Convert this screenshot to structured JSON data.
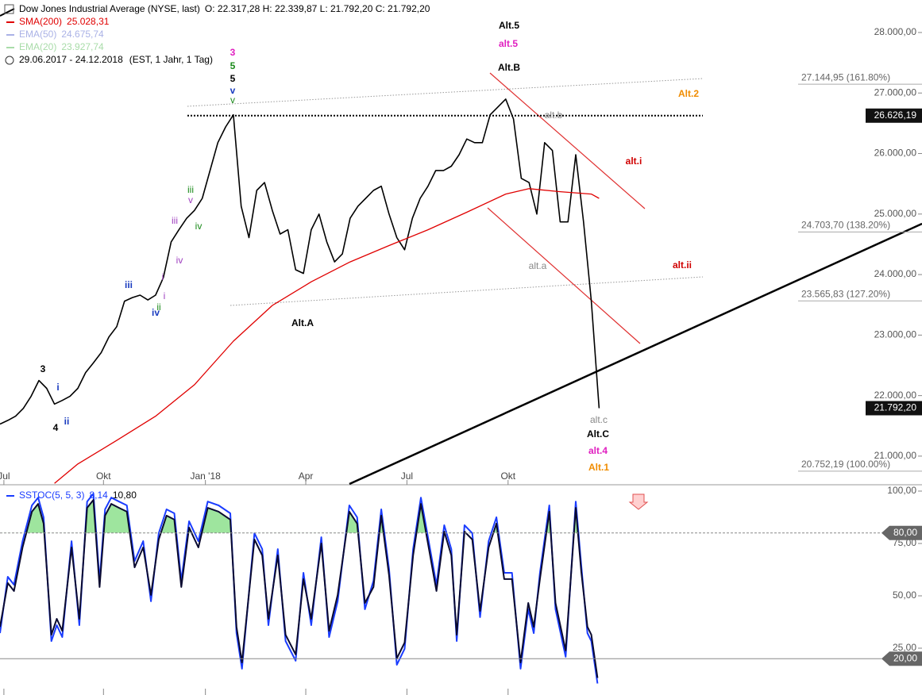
{
  "chart_data": [
    {
      "type": "line",
      "title": "Dow Jones Industrial Average (NYSE, last)",
      "ohlc": "O: 22.317,28  H: 22.339,87  L: 21.792,20  C: 21.792,20",
      "period": "29.06.2017 - 24.12.2018",
      "period_note": "(EST, 1 Jahr, 1 Tag)",
      "xlim": [
        0,
        118.5
      ],
      "ylim": [
        20540,
        28537
      ],
      "xticks": [
        {
          "value": 0.5,
          "label": "Jul"
        },
        {
          "value": 13.3,
          "label": "Okt"
        },
        {
          "value": 26.4,
          "label": "Jan '18"
        },
        {
          "value": 39.3,
          "label": "Apr"
        },
        {
          "value": 52.3,
          "label": "Jul"
        },
        {
          "value": 65.3,
          "label": "Okt"
        }
      ],
      "yticks": [
        {
          "value": 21000,
          "label": "21.000,00"
        },
        {
          "value": 22000,
          "label": "22.000,00"
        },
        {
          "value": 23000,
          "label": "23.000,00"
        },
        {
          "value": 24000,
          "label": "24.000,00"
        },
        {
          "value": 25000,
          "label": "25.000,00"
        },
        {
          "value": 26000,
          "label": "26.000,00"
        },
        {
          "value": 27000,
          "label": "27.000,00"
        },
        {
          "value": 28000,
          "label": "28.000,00"
        }
      ],
      "x": [
        0,
        1,
        2,
        3,
        4,
        5,
        6,
        7,
        8,
        9,
        10,
        11,
        12,
        13,
        14,
        15,
        16,
        17,
        18,
        19,
        20,
        21,
        22,
        23,
        24,
        25,
        26,
        27,
        28,
        29,
        30,
        31,
        32,
        33,
        34,
        35,
        36,
        37,
        38,
        39,
        40,
        41,
        42,
        43,
        44,
        45,
        46,
        47,
        48,
        49,
        50,
        51,
        52,
        53,
        54,
        55,
        56,
        57,
        58,
        59,
        60,
        61,
        62,
        63,
        64,
        65,
        66,
        67,
        68,
        69,
        70,
        71,
        72,
        73,
        74,
        75,
        76,
        77
      ],
      "series": [
        {
          "name": "Dow Jones Industrial Average",
          "color": "#000000",
          "values": [
            21530,
            21590,
            21660,
            21790,
            21990,
            22250,
            22120,
            21860,
            21920,
            21990,
            22120,
            22380,
            22540,
            22710,
            22970,
            23140,
            23560,
            23620,
            23660,
            23580,
            23660,
            23950,
            24540,
            24740,
            24930,
            25060,
            25260,
            25720,
            26180,
            26440,
            26640,
            25130,
            24610,
            25390,
            25520,
            25060,
            24670,
            24740,
            24080,
            24020,
            24740,
            25000,
            24540,
            24210,
            24340,
            24930,
            25130,
            25260,
            25390,
            25460,
            25000,
            24610,
            24410,
            24930,
            25260,
            25460,
            25720,
            25720,
            25790,
            25980,
            26240,
            26180,
            26180,
            26640,
            26770,
            26900,
            26570,
            25590,
            25520,
            25000,
            26180,
            26050,
            24870,
            24870,
            25980,
            24870,
            23560,
            21792.2
          ]
        },
        {
          "name": "SMA(200)",
          "legend_value": "25.028,31",
          "color": "#e00000",
          "x": [
            7,
            10,
            15,
            20,
            25,
            30,
            35,
            40,
            45,
            50,
            55,
            60,
            65,
            68,
            72,
            76,
            77
          ],
          "values": [
            20550,
            20870,
            21260,
            21660,
            22180,
            22900,
            23490,
            23880,
            24210,
            24480,
            24740,
            25030,
            25330,
            25420,
            25370,
            25330,
            25260
          ]
        }
      ],
      "legend_extra": [
        {
          "name": "EMA(50)",
          "value": "24.675,74",
          "color": "#aab2e6"
        },
        {
          "name": "EMA(20)",
          "value": "23.927,74",
          "color": "#a9dca9"
        }
      ],
      "price_markers": [
        {
          "value": 26626.19,
          "label": "26.626,19"
        },
        {
          "value": 21792.2,
          "label": "21.792,20"
        }
      ],
      "fib_levels": [
        {
          "value": 27144.95,
          "label": "27.144,95 (161.80%)"
        },
        {
          "value": 24703.7,
          "label": "24.703,70 (138.20%)"
        },
        {
          "value": 23565.83,
          "label": "23.565,83 (127.20%)"
        },
        {
          "value": 20752.19,
          "label": "20.752,19 (100.00%)"
        }
      ],
      "annotations": [
        {
          "text": "Alt.5",
          "color": "#000000"
        },
        {
          "text": "alt.5",
          "color": "#e020c0"
        },
        {
          "text": "Alt.B",
          "color": "#000000"
        },
        {
          "text": "Alt.2",
          "color": "#f08c00"
        },
        {
          "text": "alt.b",
          "color": "#888888"
        },
        {
          "text": "alt.i",
          "color": "#d00000"
        },
        {
          "text": "alt.ii",
          "color": "#d00000"
        },
        {
          "text": "alt.a",
          "color": "#888888"
        },
        {
          "text": "Alt.A",
          "color": "#000000"
        },
        {
          "text": "alt.c",
          "color": "#888888"
        },
        {
          "text": "Alt.C",
          "color": "#000000"
        },
        {
          "text": "alt.4",
          "color": "#e020c0"
        },
        {
          "text": "Alt.1",
          "color": "#f08c00"
        },
        {
          "text": "3",
          "color": "#e020c0"
        },
        {
          "text": "5",
          "color": "#1a8a1a"
        },
        {
          "text": "5",
          "color": "#000000"
        },
        {
          "text": "v",
          "color": "#1a3cc0"
        },
        {
          "text": "v",
          "color": "#1a8a1a"
        },
        {
          "text": "iii",
          "color": "#1a8a1a"
        },
        {
          "text": "v",
          "color": "#a040c0"
        },
        {
          "text": "iv",
          "color": "#1a8a1a"
        },
        {
          "text": "iii",
          "color": "#a040c0"
        },
        {
          "text": "iv",
          "color": "#a040c0"
        },
        {
          "text": "i",
          "color": "#a040c0"
        },
        {
          "text": "i",
          "color": "#a040c0"
        },
        {
          "text": "ii",
          "color": "#1a8a1a"
        },
        {
          "text": "iii",
          "color": "#1a3cc0"
        },
        {
          "text": "iv",
          "color": "#1a3cc0"
        },
        {
          "text": "3",
          "color": "#000000"
        },
        {
          "text": "i",
          "color": "#1a3cc0"
        },
        {
          "text": "4",
          "color": "#000000"
        },
        {
          "text": "ii",
          "color": "#1a3cc0"
        }
      ]
    },
    {
      "type": "line",
      "title": "SSTOC(5, 5, 3)",
      "xlim": [
        0,
        118.5
      ],
      "ylim": [
        0,
        100
      ],
      "yticks": [
        {
          "value": 25,
          "label": "25,00"
        },
        {
          "value": 50,
          "label": "50,00"
        },
        {
          "value": 75,
          "label": "75,00"
        },
        {
          "value": 100,
          "label": "100,00"
        }
      ],
      "levels": [
        {
          "value": 80,
          "label": "80,00"
        },
        {
          "value": 20,
          "label": "20,00"
        }
      ],
      "fill_color": "#9ee59e",
      "x": [
        0,
        1.0,
        1.8,
        2.9,
        4.1,
        4.9,
        5.6,
        6.6,
        7.3,
        8.0,
        9.2,
        10.2,
        11.2,
        12.0,
        12.8,
        13.5,
        14.3,
        15.3,
        16.3,
        17.3,
        18.4,
        19.4,
        20.4,
        21.4,
        22.4,
        23.3,
        24.3,
        25.5,
        26.7,
        28.1,
        29.6,
        30.4,
        31.1,
        32.7,
        33.7,
        34.5,
        35.7,
        36.7,
        38.0,
        39.0,
        40.0,
        41.3,
        42.3,
        43.4,
        44.9,
        45.9,
        46.9,
        48.0,
        49.0,
        50.0,
        51.0,
        52.0,
        53.1,
        54.1,
        55.1,
        56.1,
        57.1,
        58.0,
        58.7,
        59.7,
        60.7,
        61.7,
        62.8,
        63.8,
        64.8,
        65.8,
        66.9,
        67.9,
        68.6,
        69.4,
        70.6,
        71.4,
        72.7,
        74.0,
        74.7,
        75.5,
        76.0,
        76.8
      ],
      "series": [
        {
          "legend_value": "8,14",
          "color": "#1a3cff",
          "values": [
            32.2,
            59.1,
            55.3,
            76.1,
            93.2,
            96.9,
            87.5,
            28.4,
            36.0,
            30.3,
            76.1,
            36.0,
            95.0,
            98.8,
            57.2,
            91.3,
            96.9,
            95.0,
            93.2,
            66.6,
            76.1,
            47.4,
            79.9,
            91.3,
            89.4,
            57.2,
            85.6,
            76.1,
            95.0,
            93.2,
            89.4,
            32.2,
            15.2,
            79.9,
            72.3,
            36.0,
            72.3,
            28.4,
            19.0,
            61.0,
            36.0,
            78.0,
            30.3,
            47.4,
            93.2,
            87.5,
            43.6,
            57.2,
            91.3,
            62.8,
            17.1,
            24.7,
            72.3,
            96.9,
            76.1,
            55.3,
            83.7,
            72.3,
            28.4,
            83.7,
            79.9,
            39.8,
            76.1,
            87.5,
            61.0,
            61.0,
            15.2,
            43.6,
            32.2,
            61.0,
            93.2,
            43.6,
            20.9,
            95.0,
            64.7,
            32.2,
            28.4,
            8.14
          ]
        },
        {
          "legend_value": "10,80",
          "color": "#0a0a30",
          "values": [
            35.2,
            56.1,
            52.3,
            73.1,
            90.2,
            93.9,
            84.5,
            31.4,
            39.0,
            33.3,
            73.1,
            39.0,
            92.0,
            95.8,
            54.2,
            88.3,
            93.9,
            92.0,
            90.2,
            63.6,
            73.1,
            50.4,
            76.9,
            88.3,
            86.4,
            54.2,
            82.6,
            73.1,
            92.0,
            90.2,
            86.4,
            35.2,
            18.2,
            76.9,
            69.3,
            39.0,
            69.3,
            31.4,
            22.0,
            58.0,
            39.0,
            75.0,
            33.3,
            50.4,
            90.2,
            84.5,
            46.6,
            54.2,
            88.3,
            59.8,
            20.1,
            27.7,
            69.3,
            93.9,
            73.1,
            52.3,
            80.7,
            69.3,
            31.4,
            80.7,
            76.9,
            42.8,
            73.1,
            84.5,
            58.0,
            58.0,
            18.2,
            46.6,
            35.2,
            58.0,
            90.2,
            46.6,
            23.9,
            92.0,
            61.7,
            35.2,
            31.4,
            10.8
          ]
        }
      ]
    }
  ]
}
